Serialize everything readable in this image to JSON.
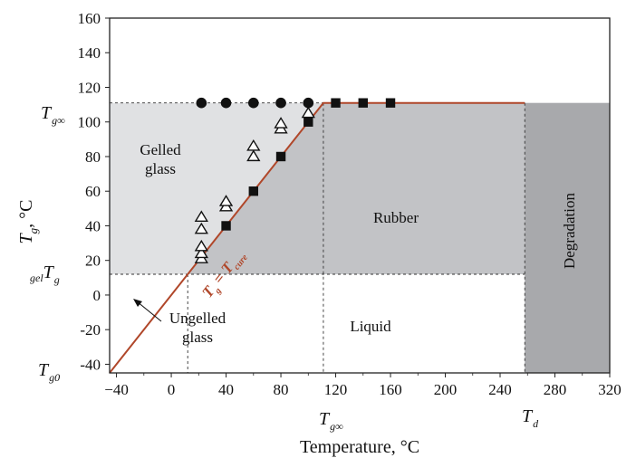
{
  "chart_data": {
    "type": "scatter",
    "xlabel": "Temperature, °C",
    "ylabel_main": "T",
    "ylabel_sub": "g",
    "ylabel_tail": ", °C",
    "xlim": [
      -45,
      320
    ],
    "ylim": [
      -45,
      160
    ],
    "x_ticks": [
      -40,
      0,
      40,
      80,
      120,
      160,
      200,
      240,
      280,
      320
    ],
    "y_ticks": [
      -40,
      -20,
      0,
      20,
      40,
      60,
      80,
      100,
      120,
      140,
      160
    ],
    "tg_inf": 111,
    "tg_gel": 12,
    "t_gel": 12,
    "t_d": 258,
    "tg0": -45,
    "regions": [
      {
        "label": "Gelled\nglass",
        "color": "#e0e1e3"
      },
      {
        "label": "Ungelled\nglass",
        "color": "#ffffff"
      },
      {
        "label": "Rubber",
        "color": "#c2c3c6"
      },
      {
        "label": "Liquid",
        "color": "#ffffff"
      },
      {
        "label": "Degradation",
        "color": "#a8a9ac"
      }
    ],
    "axis_annotations": {
      "tg_inf_y": {
        "main": "T",
        "sub": "g∞"
      },
      "gel_tg_y": {
        "pre": "gel",
        "main": "T",
        "sub": "g"
      },
      "tg0_y": {
        "main": "T",
        "sub": "g0"
      },
      "tg_inf_x": {
        "main": "T",
        "sub": "g∞"
      },
      "td_x": {
        "main": "T",
        "sub": "d"
      }
    },
    "diagonal_label": {
      "main": "T",
      "sub": "g",
      "eq": " = ",
      "main2": "T",
      "sub2": "cure"
    },
    "series": [
      {
        "marker": "circle",
        "points": [
          [
            22,
            111
          ],
          [
            40,
            111
          ],
          [
            60,
            111
          ],
          [
            80,
            111
          ],
          [
            100,
            111
          ]
        ]
      },
      {
        "marker": "square",
        "points": [
          [
            40,
            40
          ],
          [
            60,
            60
          ],
          [
            80,
            80
          ],
          [
            100,
            100
          ],
          [
            120,
            111
          ],
          [
            140,
            111
          ],
          [
            160,
            111
          ]
        ]
      },
      {
        "marker": "triangle-open",
        "points": [
          [
            22,
            21
          ],
          [
            22,
            24
          ],
          [
            22,
            28
          ],
          [
            22,
            38
          ],
          [
            22,
            45
          ],
          [
            40,
            51
          ],
          [
            40,
            54
          ],
          [
            60,
            80
          ],
          [
            60,
            86
          ],
          [
            80,
            96
          ],
          [
            80,
            99
          ],
          [
            100,
            105
          ]
        ]
      }
    ],
    "colors": {
      "diagonal_line": "#b0472a",
      "marker": "#111111"
    }
  }
}
